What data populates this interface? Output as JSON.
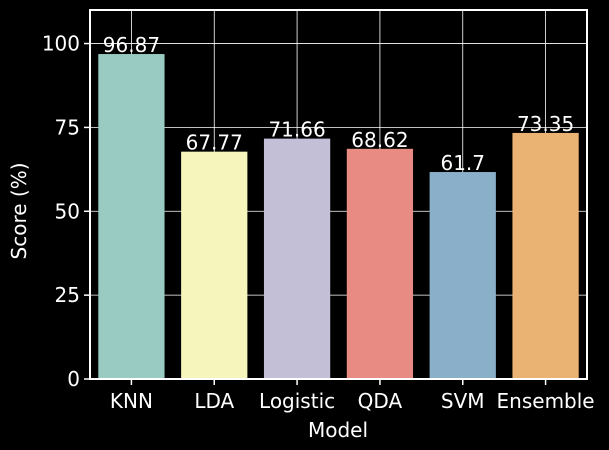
{
  "chart_data": {
    "type": "bar",
    "title": "",
    "xlabel": "Model",
    "ylabel": "Score (%)",
    "ylim": [
      0,
      110
    ],
    "yticks": [
      0,
      25,
      50,
      75,
      100
    ],
    "grid": true,
    "categories": [
      "KNN",
      "LDA",
      "Logistic",
      "QDA",
      "SVM",
      "Ensemble"
    ],
    "values": [
      96.87,
      67.77,
      71.66,
      68.62,
      61.7,
      73.35
    ],
    "data_labels": [
      "96.87",
      "67.77",
      "71.66",
      "68.62",
      "61.7",
      "73.35"
    ],
    "colors": [
      "#99cbc3",
      "#f5f5bc",
      "#c2bfd7",
      "#e88b83",
      "#8aafc9",
      "#ebb373"
    ]
  }
}
